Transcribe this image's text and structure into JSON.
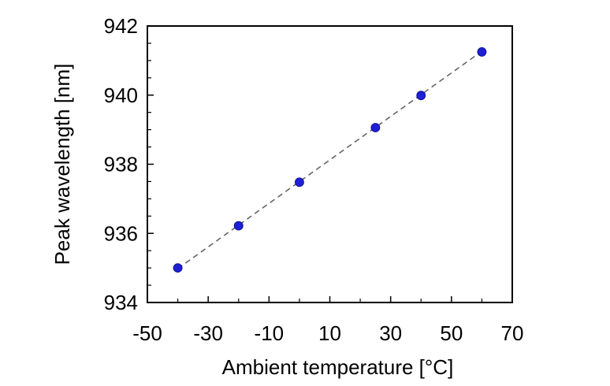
{
  "chart_data": {
    "type": "scatter",
    "title": "",
    "xlabel": "Ambient temperature [°C]",
    "ylabel": "Peak wavelength [nm]",
    "xlim": [
      -50,
      70
    ],
    "ylim": [
      934,
      942
    ],
    "xticks": [
      -50,
      -30,
      -10,
      10,
      30,
      50,
      70
    ],
    "yticks": [
      934,
      936,
      938,
      940,
      942
    ],
    "grid": false,
    "legend": "none",
    "series": [
      {
        "x": [
          -40,
          -20,
          0,
          25,
          40,
          60
        ],
        "y": [
          935.0,
          936.22,
          937.48,
          939.06,
          939.99,
          941.25
        ],
        "marker_color": "#1f1fd6"
      }
    ],
    "fit_line": {
      "style": "dashed",
      "color": "#666666",
      "x": [
        -40,
        60
      ],
      "y": [
        934.98,
        941.27
      ]
    }
  }
}
